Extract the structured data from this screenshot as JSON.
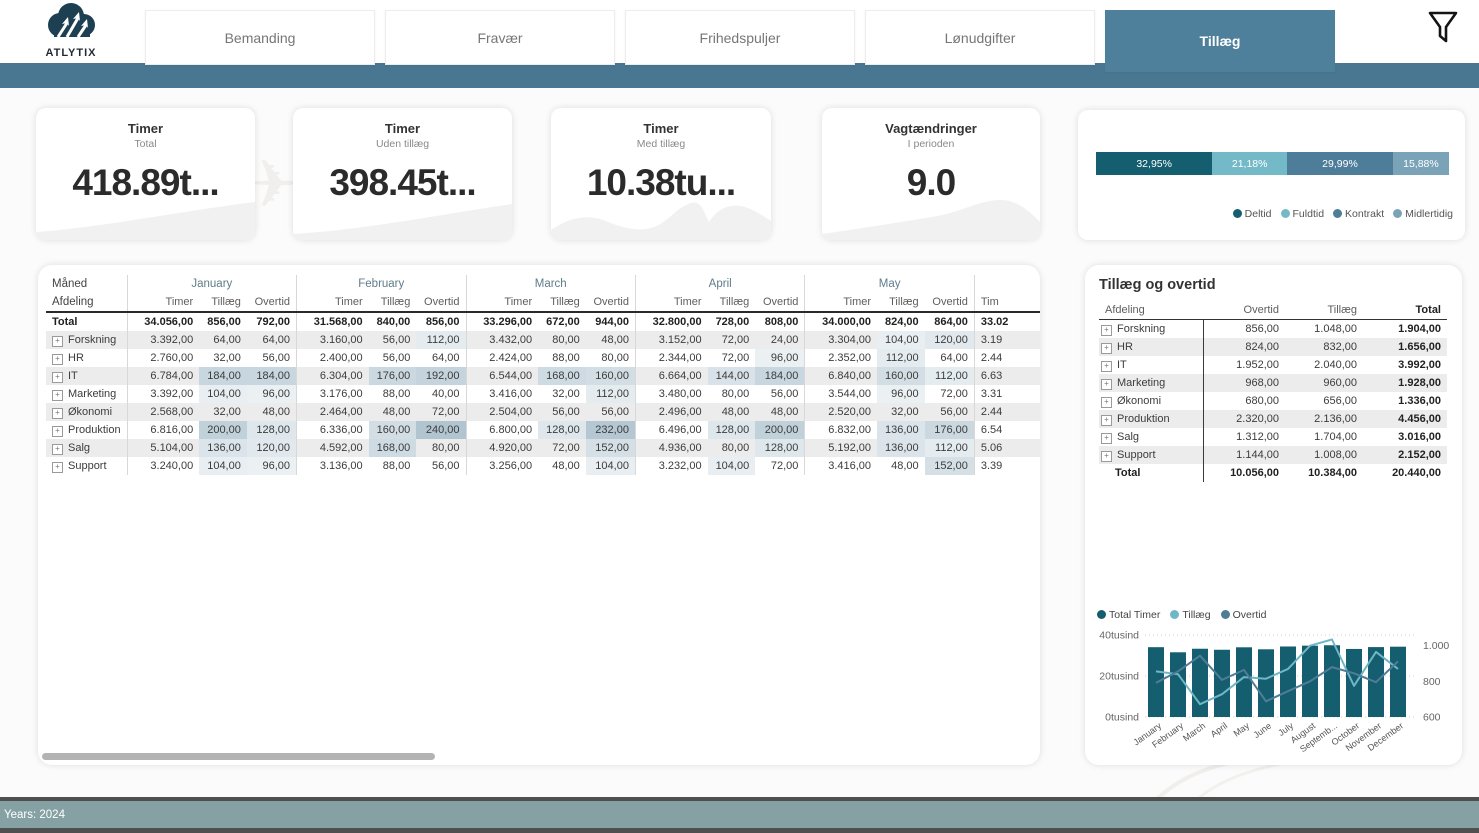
{
  "brand": {
    "name": "ATLYTIX"
  },
  "nav": {
    "tabs": [
      {
        "label": "Bemanding",
        "active": false
      },
      {
        "label": "Fravær",
        "active": false
      },
      {
        "label": "Frihedspuljer",
        "active": false
      },
      {
        "label": "Lønudgifter",
        "active": false
      },
      {
        "label": "Tillæg",
        "active": true
      }
    ]
  },
  "icons": {
    "expand_glyph": "+"
  },
  "kpis": [
    {
      "title": "Timer",
      "subtitle": "Total",
      "value": "418.89t..."
    },
    {
      "title": "Timer",
      "subtitle": "Uden tillæg",
      "value": "398.45t..."
    },
    {
      "title": "Timer",
      "subtitle": "Med tillæg",
      "value": "10.38tu..."
    },
    {
      "title": "Vagtændringer",
      "subtitle": "I perioden",
      "value": "9.0"
    }
  ],
  "main_table": {
    "corner_top": "Måned",
    "corner_bottom": "Afdeling",
    "measures": [
      "Timer",
      "Tillæg",
      "Overtid"
    ],
    "months": [
      "January",
      "February",
      "March",
      "April",
      "May"
    ],
    "partial_header": "Tim",
    "rows": [
      {
        "label": "Total",
        "total": true,
        "months": [
          [
            "34.056,00",
            "856,00",
            "792,00"
          ],
          [
            "31.568,00",
            "840,00",
            "856,00"
          ],
          [
            "33.296,00",
            "672,00",
            "944,00"
          ],
          [
            "32.800,00",
            "728,00",
            "808,00"
          ],
          [
            "34.000,00",
            "824,00",
            "864,00"
          ]
        ],
        "partial": "33.02"
      },
      {
        "label": "Forskning",
        "total": false,
        "months": [
          [
            "3.392,00",
            "64,00",
            "64,00"
          ],
          [
            "3.160,00",
            "56,00",
            "112,00"
          ],
          [
            "3.432,00",
            "80,00",
            "48,00"
          ],
          [
            "3.152,00",
            "72,00",
            "24,00"
          ],
          [
            "3.304,00",
            "104,00",
            "120,00"
          ]
        ],
        "partial": "3.19"
      },
      {
        "label": "HR",
        "total": false,
        "months": [
          [
            "2.760,00",
            "32,00",
            "56,00"
          ],
          [
            "2.400,00",
            "56,00",
            "64,00"
          ],
          [
            "2.424,00",
            "88,00",
            "80,00"
          ],
          [
            "2.344,00",
            "72,00",
            "96,00"
          ],
          [
            "2.352,00",
            "112,00",
            "64,00"
          ]
        ],
        "partial": "2.44"
      },
      {
        "label": "IT",
        "total": false,
        "months": [
          [
            "6.784,00",
            "184,00",
            "184,00"
          ],
          [
            "6.304,00",
            "176,00",
            "192,00"
          ],
          [
            "6.544,00",
            "168,00",
            "160,00"
          ],
          [
            "6.664,00",
            "144,00",
            "184,00"
          ],
          [
            "6.840,00",
            "160,00",
            "112,00"
          ]
        ],
        "partial": "6.63"
      },
      {
        "label": "Marketing",
        "total": false,
        "months": [
          [
            "3.392,00",
            "104,00",
            "96,00"
          ],
          [
            "3.176,00",
            "88,00",
            "40,00"
          ],
          [
            "3.416,00",
            "32,00",
            "112,00"
          ],
          [
            "3.480,00",
            "80,00",
            "56,00"
          ],
          [
            "3.544,00",
            "96,00",
            "72,00"
          ]
        ],
        "partial": "3.31"
      },
      {
        "label": "Økonomi",
        "total": false,
        "months": [
          [
            "2.568,00",
            "32,00",
            "48,00"
          ],
          [
            "2.464,00",
            "48,00",
            "72,00"
          ],
          [
            "2.504,00",
            "56,00",
            "56,00"
          ],
          [
            "2.496,00",
            "48,00",
            "48,00"
          ],
          [
            "2.520,00",
            "32,00",
            "56,00"
          ]
        ],
        "partial": "2.44"
      },
      {
        "label": "Produktion",
        "total": false,
        "months": [
          [
            "6.816,00",
            "200,00",
            "128,00"
          ],
          [
            "6.336,00",
            "160,00",
            "240,00"
          ],
          [
            "6.800,00",
            "128,00",
            "232,00"
          ],
          [
            "6.496,00",
            "128,00",
            "200,00"
          ],
          [
            "6.832,00",
            "136,00",
            "176,00"
          ]
        ],
        "partial": "6.54"
      },
      {
        "label": "Salg",
        "total": false,
        "months": [
          [
            "5.104,00",
            "136,00",
            "120,00"
          ],
          [
            "4.592,00",
            "168,00",
            "80,00"
          ],
          [
            "4.920,00",
            "72,00",
            "152,00"
          ],
          [
            "4.936,00",
            "80,00",
            "128,00"
          ],
          [
            "5.192,00",
            "136,00",
            "112,00"
          ]
        ],
        "partial": "5.06"
      },
      {
        "label": "Support",
        "total": false,
        "months": [
          [
            "3.240,00",
            "104,00",
            "96,00"
          ],
          [
            "3.136,00",
            "88,00",
            "56,00"
          ],
          [
            "3.256,00",
            "48,00",
            "104,00"
          ],
          [
            "3.232,00",
            "104,00",
            "72,00"
          ],
          [
            "3.416,00",
            "48,00",
            "152,00"
          ]
        ],
        "partial": "3.39"
      }
    ]
  },
  "side_panel": {
    "title": "Tillæg og overtid",
    "columns": [
      "Afdeling",
      "Overtid",
      "Tillæg",
      "Total"
    ],
    "rows": [
      {
        "label": "Forskning",
        "overtid": "856,00",
        "tillaeg": "1.048,00",
        "total": "1.904,00"
      },
      {
        "label": "HR",
        "overtid": "824,00",
        "tillaeg": "832,00",
        "total": "1.656,00"
      },
      {
        "label": "IT",
        "overtid": "1.952,00",
        "tillaeg": "2.040,00",
        "total": "3.992,00"
      },
      {
        "label": "Marketing",
        "overtid": "968,00",
        "tillaeg": "960,00",
        "total": "1.928,00"
      },
      {
        "label": "Økonomi",
        "overtid": "680,00",
        "tillaeg": "656,00",
        "total": "1.336,00"
      },
      {
        "label": "Produktion",
        "overtid": "2.320,00",
        "tillaeg": "2.136,00",
        "total": "4.456,00"
      },
      {
        "label": "Salg",
        "overtid": "1.312,00",
        "tillaeg": "1.704,00",
        "total": "3.016,00"
      },
      {
        "label": "Support",
        "overtid": "1.144,00",
        "tillaeg": "1.008,00",
        "total": "2.152,00"
      }
    ],
    "total_row": {
      "label": "Total",
      "overtid": "10.056,00",
      "tillaeg": "10.384,00",
      "total": "20.440,00"
    }
  },
  "chart_data": [
    {
      "name": "employment-type-mix",
      "type": "bar",
      "subtype": "stacked-100-horizontal",
      "categories": [
        "Deltid",
        "Fuldtid",
        "Kontrakt",
        "Midlertidig"
      ],
      "values": [
        32.95,
        21.18,
        29.99,
        15.88
      ],
      "labels": [
        "32,95%",
        "21,18%",
        "29,99%",
        "15,88%"
      ],
      "colors": [
        "#155e70",
        "#74b9c8",
        "#4d7d99",
        "#7ba3b8"
      ],
      "legend_position": "bottom-right"
    },
    {
      "name": "timer-tillaeg-overtid-pr-maaned",
      "type": "combo",
      "categories": [
        "January",
        "February",
        "March",
        "April",
        "May",
        "June",
        "July",
        "August",
        "September",
        "October",
        "November",
        "December"
      ],
      "x_display": [
        "January",
        "February",
        "March",
        "April",
        "May",
        "June",
        "July",
        "August",
        "Septemb...",
        "October",
        "November",
        "December"
      ],
      "series": [
        {
          "name": "Total Timer",
          "type": "bar",
          "axis": "left",
          "color": "#145e6f",
          "values": [
            34056,
            31568,
            33296,
            32800,
            34000,
            33024,
            34400,
            34800,
            35000,
            33200,
            34100,
            34300
          ]
        },
        {
          "name": "Tillæg",
          "type": "line",
          "axis": "right",
          "color": "#6fb7c6",
          "values": [
            856,
            840,
            672,
            728,
            824,
            815,
            870,
            1000,
            1035,
            775,
            965,
            870
          ]
        },
        {
          "name": "Overtid",
          "type": "line",
          "axis": "right",
          "color": "#4f7d97",
          "values": [
            792,
            856,
            944,
            808,
            864,
            688,
            745,
            800,
            880,
            845,
            795,
            912
          ]
        }
      ],
      "left_axis": {
        "ticks": [
          "0tusind",
          "20tusind",
          "40tusind"
        ],
        "min": 0,
        "max": 40000
      },
      "right_axis": {
        "ticks": [
          "600",
          "800",
          "1.000"
        ],
        "min": 600,
        "max": 1060
      },
      "grid": true,
      "legend_position": "top-left"
    }
  ],
  "footer": {
    "label": "Years: 2024"
  }
}
